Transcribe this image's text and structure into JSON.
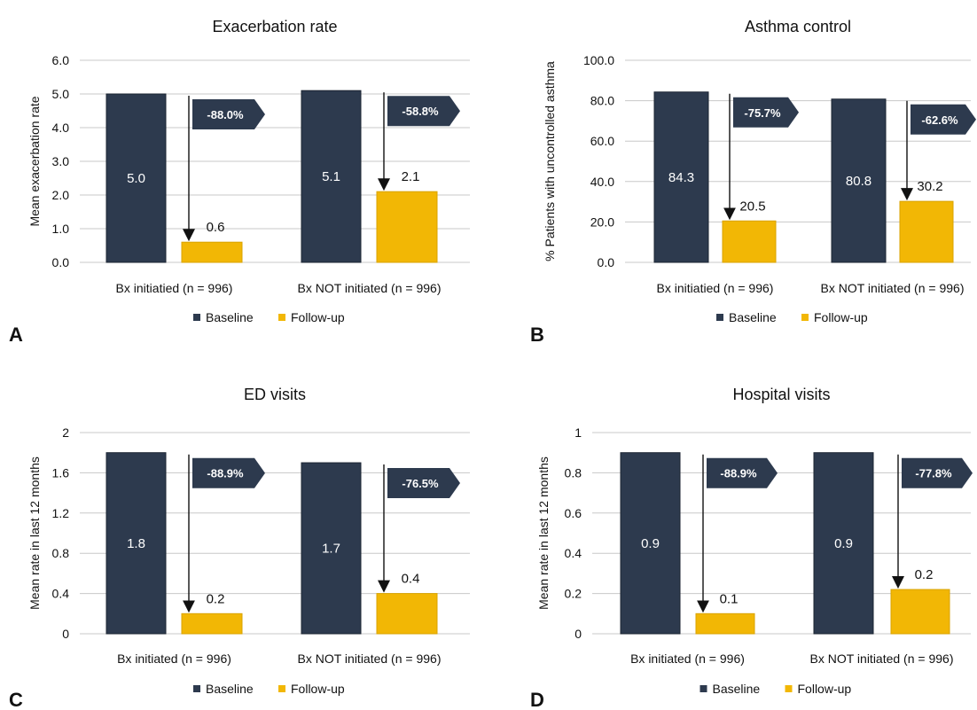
{
  "chart_data": [
    {
      "type": "bar",
      "panel": "A",
      "title": "Exacerbation rate",
      "ylabel": "Mean exacerbation rate",
      "categories": [
        "Bx initiatied (n = 996)",
        "Bx NOT initiated (n = 996)"
      ],
      "series": [
        {
          "name": "Baseline",
          "values": [
            5.0,
            5.1
          ]
        },
        {
          "name": "Follow-up",
          "values": [
            0.6,
            2.1
          ]
        }
      ],
      "value_labels": {
        "baseline": [
          "5.0",
          "5.1"
        ],
        "followup": [
          "0.6",
          "2.1"
        ]
      },
      "change_labels": [
        "-88.0%",
        "-58.8%"
      ],
      "ylim": [
        0,
        6
      ],
      "yticks": [
        "0.0",
        "1.0",
        "2.0",
        "3.0",
        "4.0",
        "5.0",
        "6.0"
      ],
      "grid": true,
      "legend": "bottom"
    },
    {
      "type": "bar",
      "panel": "B",
      "title": "Asthma control",
      "ylabel": "% Patients with uncontrolled asthma",
      "categories": [
        "Bx initiatied (n = 996)",
        "Bx NOT initiated (n = 996)"
      ],
      "series": [
        {
          "name": "Baseline",
          "values": [
            84.3,
            80.8
          ]
        },
        {
          "name": "Follow-up",
          "values": [
            20.5,
            30.2
          ]
        }
      ],
      "value_labels": {
        "baseline": [
          "84.3",
          "80.8"
        ],
        "followup": [
          "20.5",
          "30.2"
        ]
      },
      "change_labels": [
        "-75.7%",
        "-62.6%"
      ],
      "ylim": [
        0,
        100
      ],
      "yticks": [
        "0.0",
        "20.0",
        "40.0",
        "60.0",
        "80.0",
        "100.0"
      ],
      "grid": true,
      "legend": "bottom"
    },
    {
      "type": "bar",
      "panel": "C",
      "title": "ED visits",
      "ylabel": "Mean rate in last 12 months",
      "categories": [
        "Bx initiated (n = 996)",
        "Bx NOT initiated (n = 996)"
      ],
      "series": [
        {
          "name": "Baseline",
          "values": [
            1.8,
            1.7
          ]
        },
        {
          "name": "Follow-up",
          "values": [
            0.2,
            0.4
          ]
        }
      ],
      "value_labels": {
        "baseline": [
          "1.8",
          "1.7"
        ],
        "followup": [
          "0.2",
          "0.4"
        ]
      },
      "change_labels": [
        "-88.9%",
        "-76.5%"
      ],
      "ylim": [
        0,
        2
      ],
      "yticks": [
        "0",
        "0.4",
        "0.8",
        "1.2",
        "1.6",
        "2"
      ],
      "grid": true,
      "legend": "bottom"
    },
    {
      "type": "bar",
      "panel": "D",
      "title": "Hospital visits",
      "ylabel": "Mean rate in last 12 months",
      "categories": [
        "Bx initiated (n = 996)",
        "Bx NOT initiated (n = 996)"
      ],
      "series": [
        {
          "name": "Baseline",
          "values": [
            0.9,
            0.9
          ]
        },
        {
          "name": "Follow-up",
          "values": [
            0.1,
            0.22
          ]
        }
      ],
      "value_labels": {
        "baseline": [
          "0.9",
          "0.9"
        ],
        "followup": [
          "0.1",
          "0.2"
        ]
      },
      "change_labels": [
        "-88.9%",
        "-77.8%"
      ],
      "ylim": [
        0,
        1
      ],
      "yticks": [
        "0",
        "0.2",
        "0.4",
        "0.6",
        "0.8",
        "1"
      ],
      "grid": true,
      "legend": "bottom"
    }
  ],
  "colors": {
    "baseline": "#2d3a4e",
    "followup": "#f2b705",
    "badge": "#2d3a4e",
    "grid": "#c8c8c8"
  }
}
